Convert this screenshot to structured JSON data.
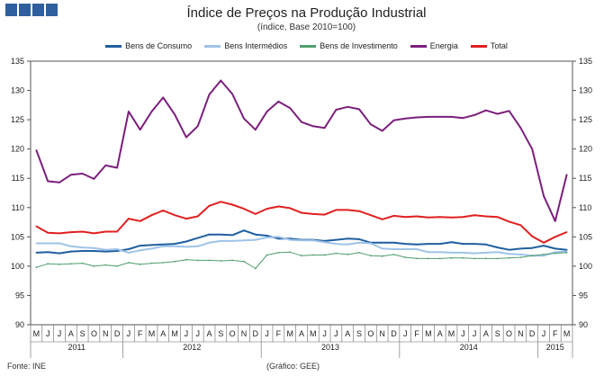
{
  "header": {
    "title": "Índice de Preços na Produção Industrial",
    "subtitle": "(índice, Base 2010=100)"
  },
  "footer": {
    "source": "Fonte: INE",
    "graphic": "(Gráfico: GEE)"
  },
  "colors": {
    "Bens de Consumo": "#1f5fa0",
    "Bens Intermédios": "#9fc3e8",
    "Bens de Investimento": "#4f9e6e",
    "Energia": "#7b1f7c",
    "Total": "#e02020",
    "logo": "#2f5f9e"
  },
  "chart_data": {
    "type": "line",
    "title": "Índice de Preços na Produção Industrial",
    "subtitle": "(índice, Base 2010=100)",
    "xlabel": "",
    "ylabel": "",
    "ylim": [
      90,
      135
    ],
    "yticks": [
      90,
      95,
      100,
      105,
      110,
      115,
      120,
      125,
      130,
      135
    ],
    "grid": false,
    "dual_axis": true,
    "legend": "top",
    "x": [
      "M",
      "J",
      "J",
      "A",
      "S",
      "O",
      "N",
      "D",
      "J",
      "F",
      "M",
      "A",
      "M",
      "J",
      "J",
      "A",
      "S",
      "O",
      "N",
      "D",
      "J",
      "F",
      "M",
      "A",
      "M",
      "J",
      "J",
      "A",
      "S",
      "O",
      "N",
      "D",
      "J",
      "F",
      "M",
      "A",
      "M",
      "J",
      "J",
      "A",
      "S",
      "O",
      "N",
      "D",
      "J",
      "F",
      "M"
    ],
    "years": [
      {
        "label": "2011",
        "start": 0,
        "end": 7
      },
      {
        "label": "2012",
        "start": 8,
        "end": 19
      },
      {
        "label": "2013",
        "start": 20,
        "end": 31
      },
      {
        "label": "2014",
        "start": 32,
        "end": 43
      },
      {
        "label": "2015",
        "start": 44,
        "end": 46
      }
    ],
    "series": [
      {
        "name": "Bens de Consumo",
        "values": [
          102.3,
          102.4,
          102.2,
          102.5,
          102.6,
          102.6,
          102.5,
          102.6,
          102.9,
          103.5,
          103.6,
          103.7,
          103.8,
          104.2,
          104.8,
          105.4,
          105.4,
          105.3,
          106.1,
          105.4,
          105.2,
          104.7,
          104.7,
          104.5,
          104.5,
          104.3,
          104.5,
          104.7,
          104.6,
          104.0,
          104.0,
          104.0,
          103.8,
          103.7,
          103.8,
          103.8,
          104.1,
          103.8,
          103.8,
          103.7,
          103.2,
          102.8,
          103.0,
          103.1,
          103.5,
          103.0,
          102.8
        ]
      },
      {
        "name": "Bens Intermédios",
        "values": [
          103.9,
          103.9,
          103.9,
          103.4,
          103.2,
          103.1,
          102.8,
          102.9,
          102.3,
          102.7,
          103.0,
          103.4,
          103.4,
          103.3,
          103.4,
          104.0,
          104.3,
          104.3,
          104.4,
          104.5,
          104.9,
          105.0,
          104.5,
          104.4,
          104.4,
          104.1,
          103.8,
          103.7,
          104.0,
          103.9,
          103.0,
          102.9,
          102.9,
          102.9,
          102.4,
          102.4,
          102.3,
          102.3,
          102.2,
          102.3,
          102.4,
          102.1,
          102.0,
          101.8,
          101.8,
          102.4,
          102.5
        ]
      },
      {
        "name": "Bens de Investimento",
        "values": [
          99.8,
          100.4,
          100.3,
          100.4,
          100.5,
          100.0,
          100.2,
          100.0,
          100.6,
          100.3,
          100.5,
          100.6,
          100.8,
          101.1,
          101.0,
          101.0,
          100.9,
          101.0,
          100.8,
          99.6,
          101.9,
          102.3,
          102.4,
          101.8,
          101.9,
          101.9,
          102.2,
          102.0,
          102.3,
          101.8,
          101.7,
          102.0,
          101.5,
          101.3,
          101.3,
          101.3,
          101.4,
          101.4,
          101.3,
          101.3,
          101.3,
          101.4,
          101.5,
          101.8,
          102.0,
          102.2,
          102.3
        ]
      },
      {
        "name": "Energia",
        "values": [
          119.8,
          114.5,
          114.3,
          115.6,
          115.8,
          114.9,
          117.2,
          116.8,
          126.4,
          123.3,
          126.4,
          128.8,
          125.9,
          122.0,
          123.9,
          129.3,
          131.7,
          129.4,
          125.2,
          123.3,
          126.4,
          128.1,
          127.0,
          124.6,
          123.9,
          123.6,
          126.7,
          127.2,
          126.8,
          124.2,
          123.1,
          124.9,
          125.2,
          125.4,
          125.5,
          125.5,
          125.5,
          125.3,
          125.8,
          126.6,
          126.0,
          126.5,
          123.6,
          120.0,
          112.0,
          107.7,
          115.6
        ]
      },
      {
        "name": "Total",
        "values": [
          106.8,
          105.7,
          105.6,
          105.8,
          105.9,
          105.6,
          105.9,
          105.9,
          108.1,
          107.7,
          108.7,
          109.5,
          108.7,
          108.1,
          108.5,
          110.3,
          111.0,
          110.5,
          109.8,
          108.9,
          109.8,
          110.2,
          109.9,
          109.1,
          108.9,
          108.8,
          109.6,
          109.6,
          109.4,
          108.7,
          108.0,
          108.6,
          108.4,
          108.5,
          108.3,
          108.4,
          108.3,
          108.4,
          108.7,
          108.5,
          108.4,
          107.6,
          107.0,
          105.1,
          104.0,
          105.0,
          105.8
        ]
      }
    ]
  }
}
